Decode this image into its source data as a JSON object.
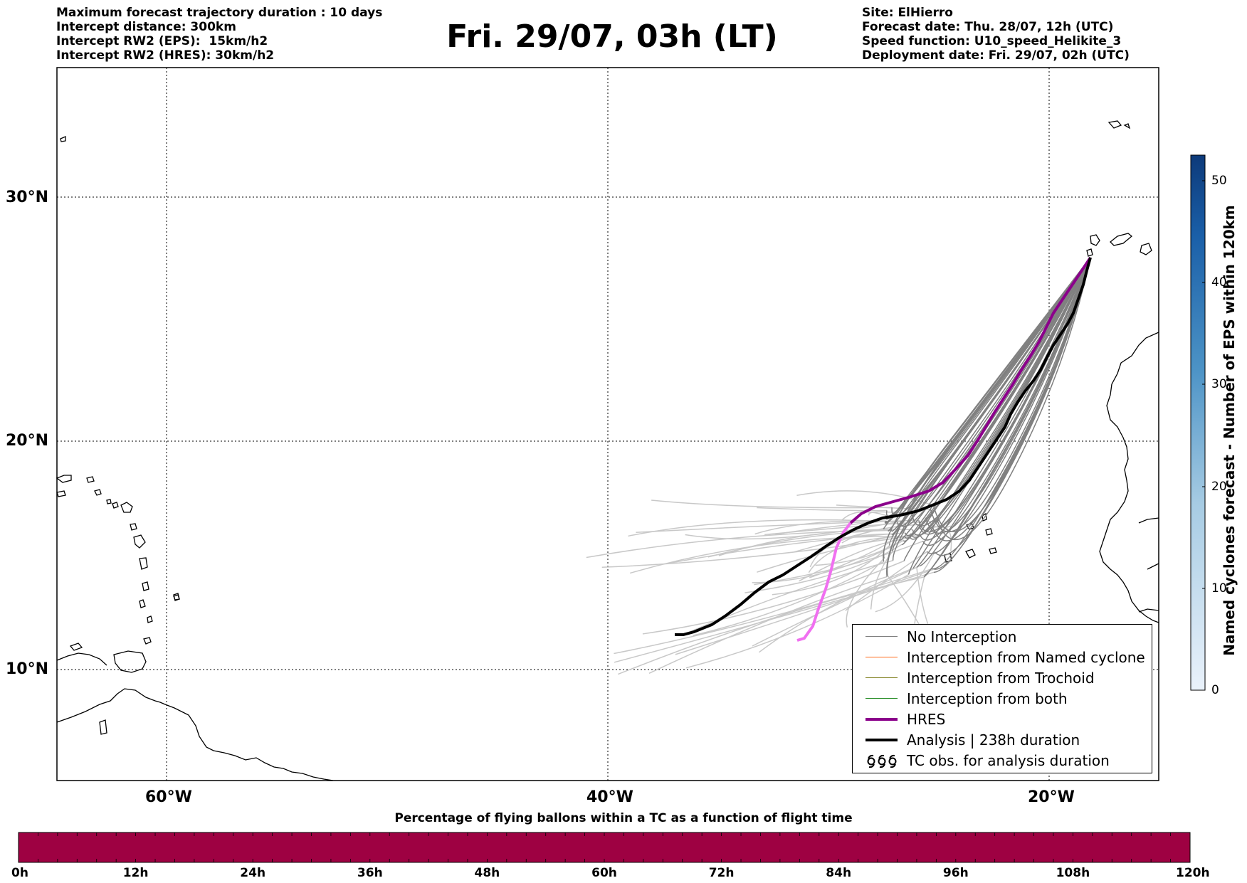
{
  "header": {
    "left_lines": [
      "Maximum forecast trajectory duration : 10 days",
      "Intercept distance: 300km",
      "Intercept RW2 (EPS):  15km/h2",
      "Intercept RW2 (HRES): 30km/h2"
    ],
    "title": "Fri. 29/07, 03h (LT)",
    "right_lines": [
      "Site: ElHierro",
      "Forecast date: Thu. 28/07, 12h (UTC)",
      "Speed function: U10_speed_Helikite_3",
      "Deployment date: Fri. 29/07, 02h (UTC)"
    ]
  },
  "map": {
    "lon_labels": [
      "60°W",
      "40°W",
      "20°W"
    ],
    "lat_labels": [
      "30°N",
      "20°N",
      "10°N"
    ],
    "lon_range": [
      -65,
      -15
    ],
    "lat_range": [
      5,
      34.3
    ],
    "colors": {
      "no_interception": "#808080",
      "eps_faded": "#c8c8c8",
      "named_cyclone": "#ff6a1a",
      "trochoid": "#808020",
      "both": "#228b22",
      "hres": "#8b008b",
      "hres_tail": "#f070f0",
      "analysis": "#000000"
    }
  },
  "legend": {
    "items": [
      {
        "label": "No Interception",
        "icon": "thin-line-gray"
      },
      {
        "label": "Interception from Named cyclone",
        "icon": "thin-line-orange"
      },
      {
        "label": "Interception from Trochoid",
        "icon": "thin-line-olive"
      },
      {
        "label": "Interception from both",
        "icon": "thin-line-green"
      },
      {
        "label": "HRES",
        "icon": "thick-line-purple"
      },
      {
        "label": "Analysis | 238h duration",
        "icon": "thick-line-black"
      },
      {
        "label": "TC obs. for analysis duration",
        "icon": "cyclone-symbols-icon"
      }
    ]
  },
  "bottom_colorbar": {
    "title": "Percentage of flying ballons within a TC as a function of flight time",
    "ticks": [
      "0h",
      "12h",
      "24h",
      "36h",
      "48h",
      "60h",
      "72h",
      "84h",
      "96h",
      "108h",
      "120h"
    ],
    "color": "#9e0142"
  },
  "right_colorbar": {
    "label": "Named cyclones forecast - Number of EPS within 120km",
    "ticks": [
      "0",
      "10",
      "20",
      "30",
      "40",
      "50"
    ],
    "range": [
      0,
      52
    ],
    "color_low": "#e8f1fa",
    "color_high": "#0d3a7a"
  }
}
